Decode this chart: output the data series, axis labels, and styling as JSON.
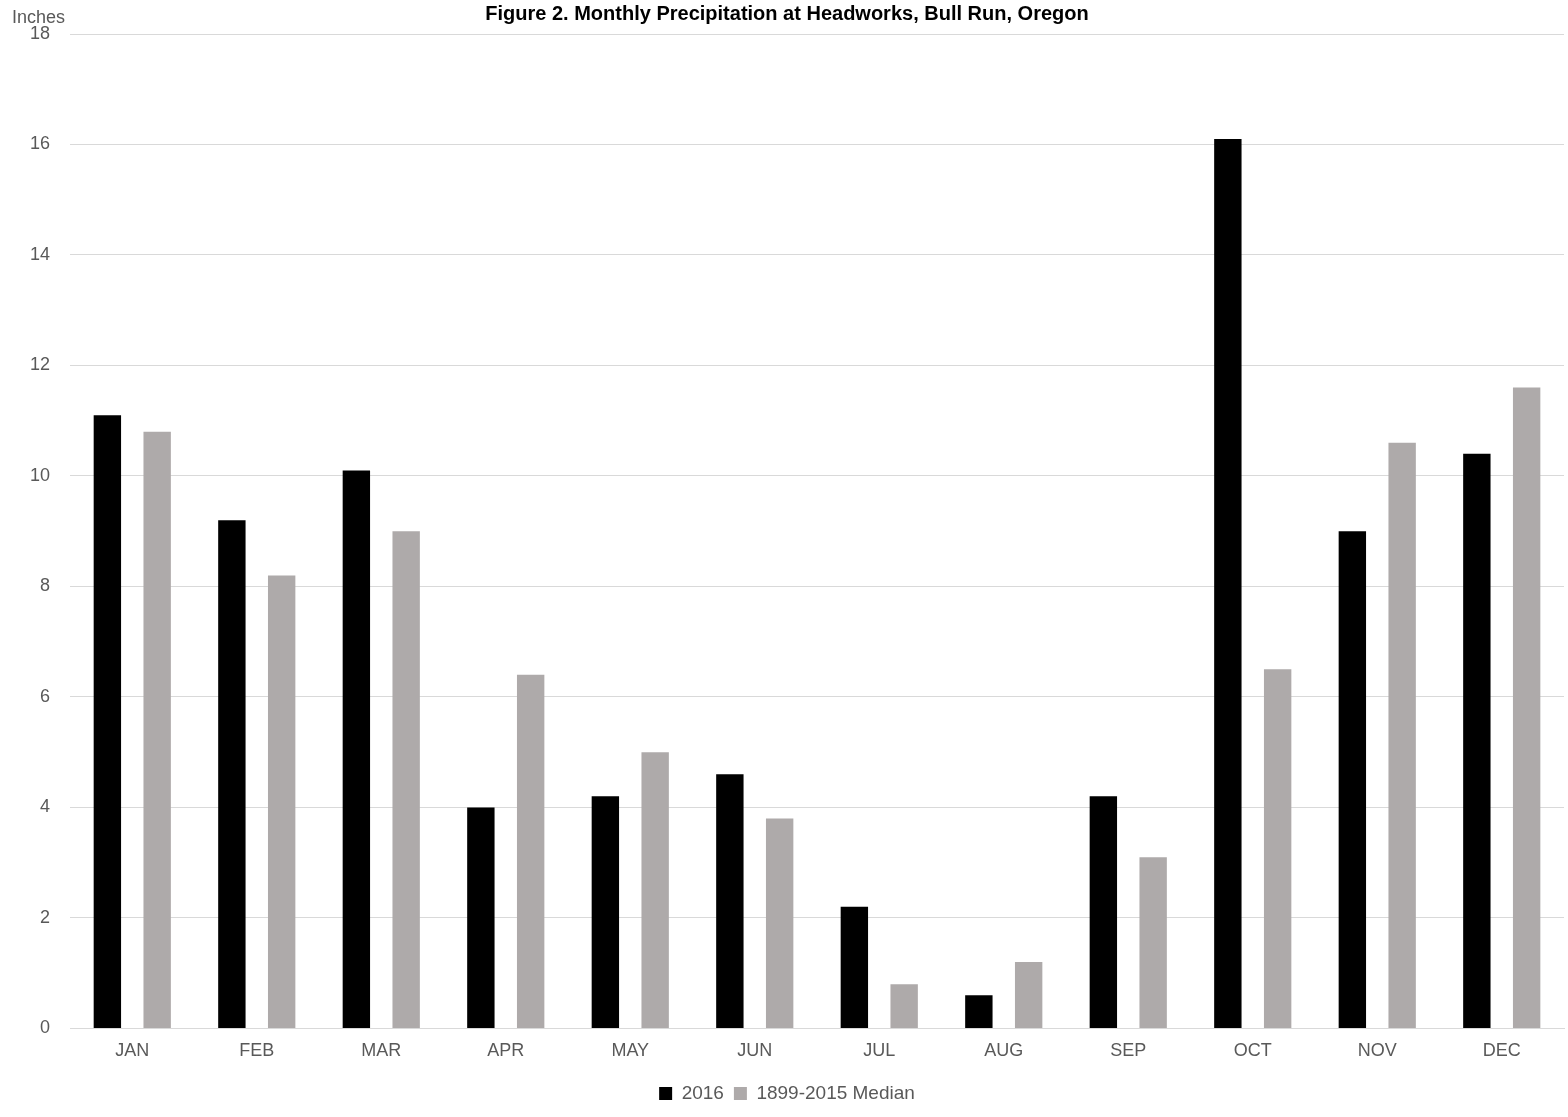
{
  "chart_data": {
    "type": "bar",
    "title": "Figure 2. Monthly Precipitation at Headworks, Bull Run, Oregon",
    "ylabel": "Inches",
    "categories": [
      "JAN",
      "FEB",
      "MAR",
      "APR",
      "MAY",
      "JUN",
      "JUL",
      "AUG",
      "SEP",
      "OCT",
      "NOV",
      "DEC"
    ],
    "series": [
      {
        "name": "2016",
        "color": "#000000",
        "values": [
          11.1,
          9.2,
          10.1,
          4.0,
          4.2,
          4.6,
          2.2,
          0.6,
          4.2,
          16.1,
          9.0,
          10.4
        ]
      },
      {
        "name": "1899-2015 Median",
        "color": "#aeaaaa",
        "values": [
          10.8,
          8.2,
          9.0,
          6.4,
          5.0,
          3.8,
          0.8,
          1.2,
          3.1,
          6.5,
          10.6,
          11.6
        ]
      }
    ],
    "ylim": [
      0,
      18
    ],
    "yticks": [
      0,
      2,
      4,
      6,
      8,
      10,
      12,
      14,
      16,
      18
    ],
    "grid": "y",
    "legend": "bottom"
  }
}
